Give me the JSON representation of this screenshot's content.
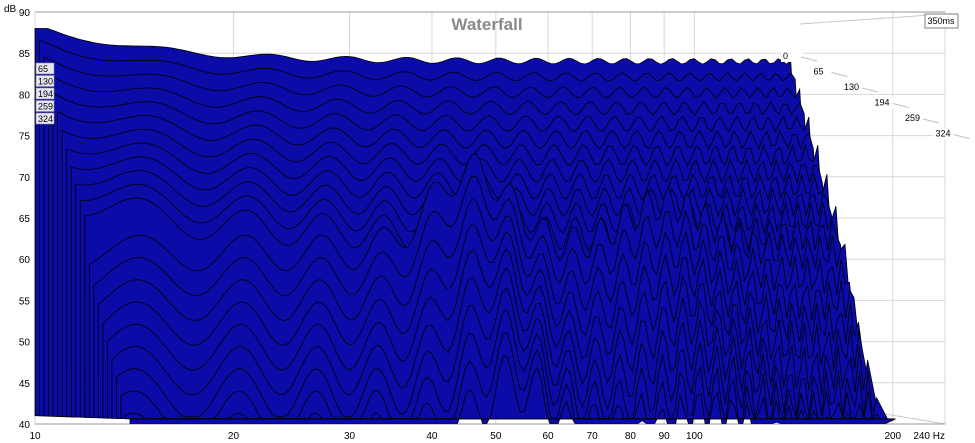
{
  "chart_data": {
    "type": "area",
    "title": "Waterfall",
    "time_range_label": "350ms",
    "y_unit": "dB",
    "x_unit": "Hz",
    "x_scale": "log",
    "xlim": [
      10,
      240
    ],
    "ylim": [
      40,
      90
    ],
    "grid": true,
    "x_ticks": [
      {
        "v": 10,
        "label": "10"
      },
      {
        "v": 20,
        "label": "20"
      },
      {
        "v": 30,
        "label": "30"
      },
      {
        "v": 40,
        "label": "40"
      },
      {
        "v": 50,
        "label": "50"
      },
      {
        "v": 60,
        "label": "60"
      },
      {
        "v": 70,
        "label": "70"
      },
      {
        "v": 80,
        "label": "80"
      },
      {
        "v": 90,
        "label": "90"
      },
      {
        "v": 100,
        "label": "100"
      },
      {
        "v": 200,
        "label": "200"
      },
      {
        "v": 240,
        "label": "240 Hz"
      }
    ],
    "y_ticks": [
      {
        "v": 40,
        "label": "40"
      },
      {
        "v": 45,
        "label": "45"
      },
      {
        "v": 50,
        "label": "50"
      },
      {
        "v": 55,
        "label": "55"
      },
      {
        "v": 60,
        "label": "60"
      },
      {
        "v": 65,
        "label": "65"
      },
      {
        "v": 70,
        "label": "70"
      },
      {
        "v": 75,
        "label": "75"
      },
      {
        "v": 80,
        "label": "80"
      },
      {
        "v": 85,
        "label": "85"
      },
      {
        "v": 90,
        "label": "90"
      }
    ],
    "time_slices_ms": [
      "0",
      "65",
      "130",
      "194",
      "259",
      "324"
    ],
    "fill_color": "#0b0ba8",
    "line_color": "#000000"
  }
}
